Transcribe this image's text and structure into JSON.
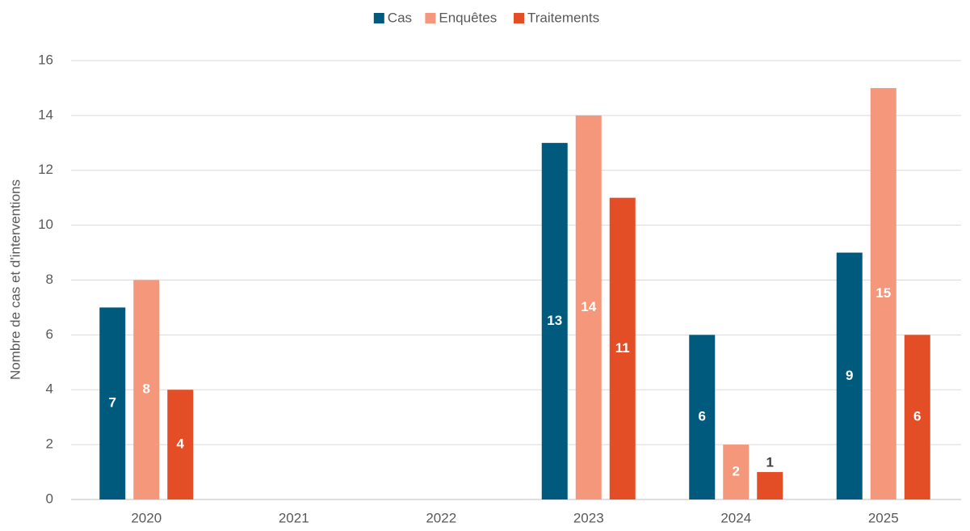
{
  "chart_data": {
    "type": "bar",
    "y_label": "Nombre de cas et d'interventions",
    "categories": [
      "2020",
      "2021",
      "2022",
      "2023",
      "2024",
      "2025"
    ],
    "series": [
      {
        "name": "Cas",
        "color": "#005a7d",
        "values": [
          7,
          null,
          null,
          13,
          6,
          9
        ]
      },
      {
        "name": "Enquêtes",
        "color": "#f4977b",
        "values": [
          8,
          null,
          null,
          14,
          2,
          15
        ]
      },
      {
        "name": "Traitements",
        "color": "#e44e26",
        "values": [
          4,
          null,
          null,
          11,
          1,
          6
        ]
      }
    ],
    "ylim": [
      0,
      16
    ],
    "yticks": [
      0,
      2,
      4,
      6,
      8,
      10,
      12,
      14,
      16
    ],
    "grid": true,
    "legend": "top"
  }
}
